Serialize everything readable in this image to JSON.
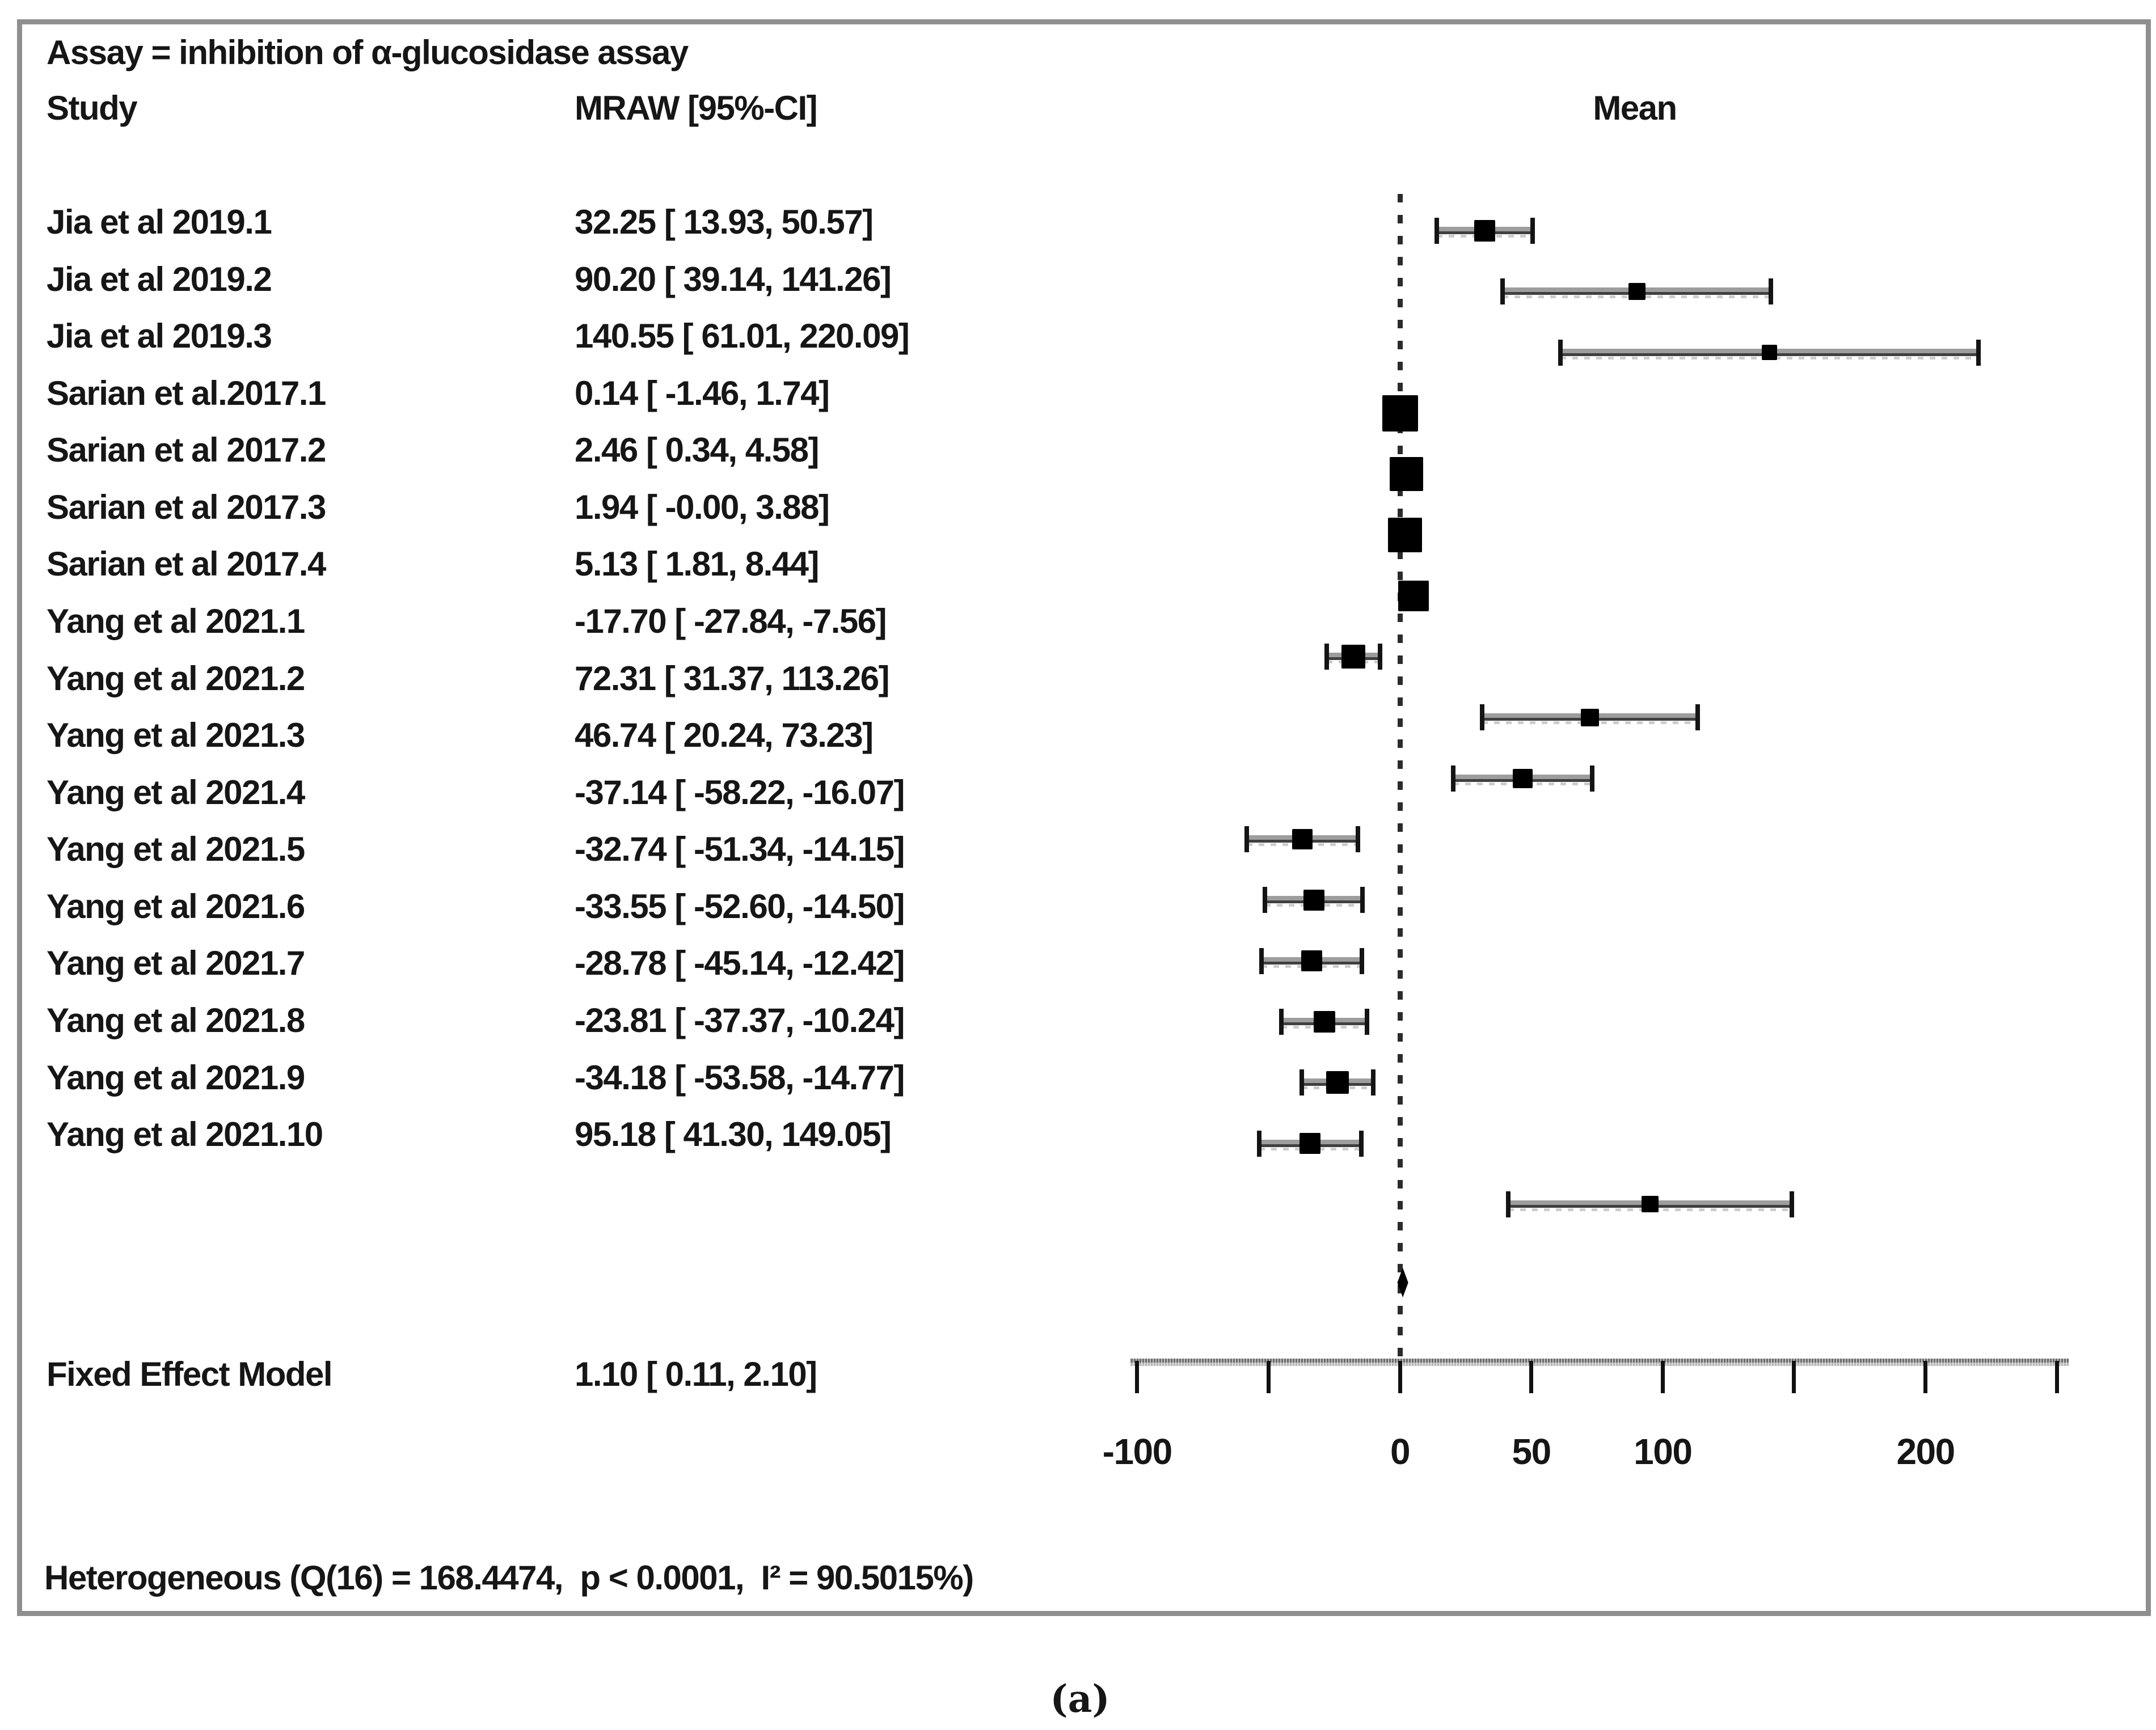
{
  "header": {
    "assay_line": "Assay = inhibition of α-glucosidase assay",
    "study_col": "Study",
    "mraw_col": "MRAW [95%-CI]",
    "mean_col": "Mean"
  },
  "chart_data": {
    "type": "forest",
    "effect_measure": "MRAW",
    "studies": [
      {
        "label": "Jia et al 2019.1",
        "mean": 32.25,
        "lower": 13.93,
        "upper": 50.57,
        "ci_text": "32.25 [ 13.93, 50.57]"
      },
      {
        "label": "Jia et al 2019.2",
        "mean": 90.2,
        "lower": 39.14,
        "upper": 141.26,
        "ci_text": "90.20 [ 39.14, 141.26]"
      },
      {
        "label": "Jia et al 2019.3",
        "mean": 140.55,
        "lower": 61.01,
        "upper": 220.09,
        "ci_text": "140.55 [ 61.01, 220.09]"
      },
      {
        "label": "Sarian et al.2017.1",
        "mean": 0.14,
        "lower": -1.46,
        "upper": 1.74,
        "ci_text": "0.14 [ -1.46, 1.74]"
      },
      {
        "label": "Sarian et al 2017.2",
        "mean": 2.46,
        "lower": 0.34,
        "upper": 4.58,
        "ci_text": "2.46 [ 0.34, 4.58]"
      },
      {
        "label": "Sarian et al 2017.3",
        "mean": 1.94,
        "lower": -0.001,
        "upper": 3.88,
        "ci_text": "1.94 [ -0.00, 3.88]"
      },
      {
        "label": "Sarian et al 2017.4",
        "mean": 5.13,
        "lower": 1.81,
        "upper": 8.44,
        "ci_text": "5.13 [ 1.81, 8.44]"
      },
      {
        "label": "Yang et al 2021.1",
        "mean": -17.7,
        "lower": -27.84,
        "upper": -7.56,
        "ci_text": "-17.70 [ -27.84, -7.56]"
      },
      {
        "label": "Yang et al 2021.2",
        "mean": 72.31,
        "lower": 31.37,
        "upper": 113.26,
        "ci_text": "72.31 [ 31.37, 113.26]"
      },
      {
        "label": "Yang et al 2021.3",
        "mean": 46.74,
        "lower": 20.24,
        "upper": 73.23,
        "ci_text": "46.74 [ 20.24, 73.23]"
      },
      {
        "label": "Yang et al 2021.4",
        "mean": -37.14,
        "lower": -58.22,
        "upper": -16.07,
        "ci_text": "-37.14 [ -58.22, -16.07]"
      },
      {
        "label": "Yang et al 2021.5",
        "mean": -32.74,
        "lower": -51.34,
        "upper": -14.15,
        "ci_text": "-32.74 [ -51.34, -14.15]"
      },
      {
        "label": "Yang et al 2021.6",
        "mean": -33.55,
        "lower": -52.6,
        "upper": -14.5,
        "ci_text": "-33.55 [ -52.60, -14.50]"
      },
      {
        "label": "Yang et al 2021.7",
        "mean": -28.78,
        "lower": -45.14,
        "upper": -12.42,
        "ci_text": "-28.78 [ -45.14, -12.42]"
      },
      {
        "label": "Yang et al 2021.8",
        "mean": -23.81,
        "lower": -37.37,
        "upper": -10.24,
        "ci_text": "-23.81 [ -37.37, -10.24]"
      },
      {
        "label": "Yang et al 2021.9",
        "mean": -34.18,
        "lower": -53.58,
        "upper": -14.77,
        "ci_text": "-34.18 [ -53.58, -14.77]"
      },
      {
        "label": "Yang et al 2021.10",
        "mean": 95.18,
        "lower": 41.3,
        "upper": 149.05,
        "ci_text": "95.18 [ 41.30, 149.05]"
      }
    ],
    "summary": {
      "label": "Fixed Effect Model",
      "mean": 1.1,
      "lower": 0.11,
      "upper": 2.1,
      "ci_text": "1.10 [ 0.11, 2.10]"
    },
    "heterogeneity": "Heterogeneous (Q(16) = 168.4474,  p < 0.0001,  I² = 90.5015%)",
    "axis": {
      "ticks": [
        -100,
        -50,
        0,
        50,
        100,
        150,
        200,
        250
      ],
      "labeled_ticks": [
        {
          "value": -100,
          "label": "-100"
        },
        {
          "value": 0,
          "label": "0"
        },
        {
          "value": 50,
          "label": "50"
        },
        {
          "value": 100,
          "label": "100"
        },
        {
          "value": 200,
          "label": "200"
        }
      ],
      "xlim": [
        -103,
        255
      ],
      "zero_line": true,
      "grid": false
    }
  },
  "caption": "(a)"
}
